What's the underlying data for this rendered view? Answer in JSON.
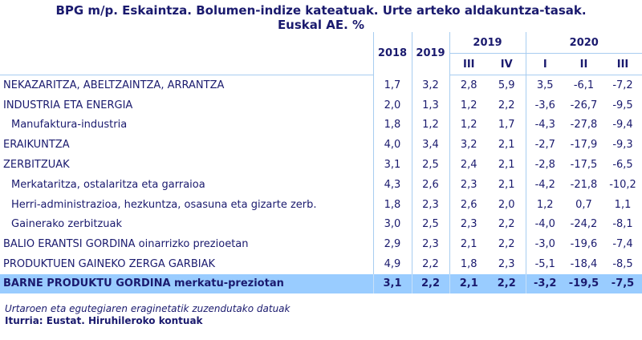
{
  "title_line1": "BPG m/p. Eskaintza. Bolumen-indize kateatuak. Urte arteko aldakuntza-tasak.",
  "title_line2": "Euskal AE. %",
  "header": {
    "y2018": "2018",
    "y2019": "2019",
    "g2019": "2019",
    "g2020": "2020",
    "q": [
      "III",
      "IV",
      "I",
      "II",
      "III"
    ]
  },
  "rows": [
    {
      "label": "NEKAZARITZA, ABELTZAINTZA, ARRANTZA",
      "values": [
        "1,7",
        "3,2",
        "2,8",
        "5,9",
        "3,5",
        "-6,1",
        "-7,2"
      ]
    },
    {
      "label": "INDUSTRIA ETA ENERGIA",
      "values": [
        "2,0",
        "1,3",
        "1,2",
        "2,2",
        "-3,6",
        "-26,7",
        "-9,5"
      ]
    },
    {
      "label": "Manufaktura-industria",
      "values": [
        "1,8",
        "1,2",
        "1,2",
        "1,7",
        "-4,3",
        "-27,8",
        "-9,4"
      ]
    },
    {
      "label": "ERAIKUNTZA",
      "values": [
        "4,0",
        "3,4",
        "3,2",
        "2,1",
        "-2,7",
        "-17,9",
        "-9,3"
      ]
    },
    {
      "label": "ZERBITZUAK",
      "values": [
        "3,1",
        "2,5",
        "2,4",
        "2,1",
        "-2,8",
        "-17,5",
        "-6,5"
      ]
    },
    {
      "label": "Merkataritza, ostalaritza eta garraioa",
      "values": [
        "4,3",
        "2,6",
        "2,3",
        "2,1",
        "-4,2",
        "-21,8",
        "-10,2"
      ]
    },
    {
      "label": "Herri-administrazioa, hezkuntza, osasuna eta gizarte zerb.",
      "values": [
        "1,8",
        "2,3",
        "2,6",
        "2,0",
        "1,2",
        "0,7",
        "1,1"
      ]
    },
    {
      "label": "Gainerako zerbitzuak",
      "values": [
        "3,0",
        "2,5",
        "2,3",
        "2,2",
        "-4,0",
        "-24,2",
        "-8,1"
      ]
    },
    {
      "label": "BALIO ERANTSI GORDINA oinarrizko prezioetan",
      "values": [
        "2,9",
        "2,3",
        "2,1",
        "2,2",
        "-3,0",
        "-19,6",
        "-7,4"
      ]
    },
    {
      "label": "PRODUKTUEN GAINEKO ZERGA GARBIAK",
      "values": [
        "4,9",
        "2,2",
        "1,8",
        "2,3",
        "-5,1",
        "-18,4",
        "-8,5"
      ]
    }
  ],
  "total": {
    "label_bold": "BARNE PRODUKTU GORDINA",
    "label_rest": " merkatu-preziotan",
    "values": [
      "3,1",
      "2,2",
      "2,1",
      "2,2",
      "-3,2",
      "-19,5",
      "-7,5"
    ]
  },
  "note": "Urtaroen eta egutegiaren eraginetatik zuzendutako datuak",
  "source": "Iturria: Eustat. Hiruhileroko kontuak"
}
